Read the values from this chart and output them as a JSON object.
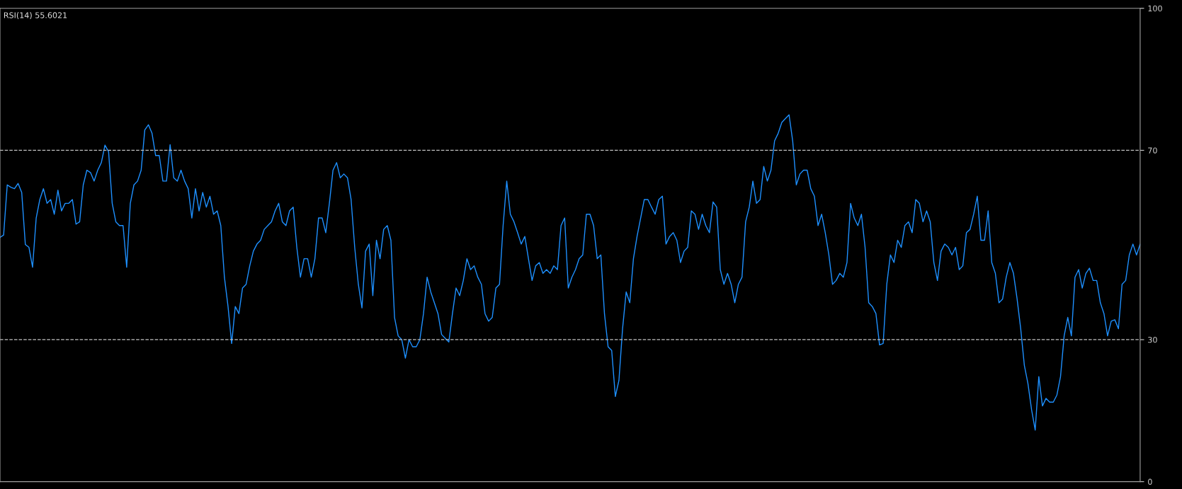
{
  "chart_data": {
    "type": "line",
    "title": "RSI(14) 55.6021",
    "ylim": [
      0,
      100
    ],
    "yticks": [
      0,
      30,
      70,
      100
    ],
    "grid": false,
    "legend": false,
    "marker": "none",
    "line_style": "solid",
    "ref_lines": [
      {
        "axis": "y",
        "value": 70,
        "color": "#c0c0c0",
        "line_style": "dashed"
      },
      {
        "axis": "y",
        "value": 30,
        "color": "#c0c0c0",
        "line_style": "dashed"
      }
    ],
    "series": [
      {
        "color": "#1e90ff",
        "values": [
          51.6,
          52.1,
          62.7,
          62.2,
          61.9,
          63.0,
          61.1,
          50.1,
          49.5,
          45.3,
          55.7,
          59.6,
          61.9,
          58.8,
          59.6,
          56.5,
          61.6,
          57.2,
          58.8,
          58.8,
          59.6,
          54.4,
          54.9,
          62.7,
          65.8,
          65.3,
          63.5,
          65.8,
          67.4,
          71.1,
          69.7,
          58.8,
          54.9,
          54.1,
          54.1,
          45.3,
          58.8,
          62.7,
          63.5,
          65.8,
          74.3,
          75.4,
          73.6,
          68.9,
          68.9,
          63.5,
          63.5,
          71.2,
          64.2,
          63.5,
          65.8,
          63.5,
          61.9,
          55.7,
          61.9,
          57.2,
          61.1,
          58.0,
          60.3,
          56.5,
          57.2,
          54.1,
          43.2,
          37.0,
          29.2,
          37.0,
          35.5,
          40.9,
          41.7,
          45.6,
          48.7,
          50.2,
          51.0,
          53.3,
          54.1,
          54.9,
          57.2,
          58.8,
          54.9,
          54.1,
          57.2,
          58.0,
          49.5,
          43.2,
          47.1,
          47.1,
          43.2,
          47.1,
          55.7,
          55.7,
          52.6,
          58.8,
          65.8,
          67.4,
          64.2,
          65.0,
          64.2,
          59.6,
          49.5,
          41.7,
          36.7,
          48.7,
          50.2,
          39.3,
          51.0,
          47.1,
          53.3,
          54.1,
          51.0,
          34.7,
          30.8,
          30.0,
          26.1,
          30.0,
          28.5,
          28.5,
          30.0,
          35.5,
          43.2,
          40.1,
          37.8,
          35.5,
          31.1,
          30.3,
          29.5,
          35.5,
          40.9,
          39.3,
          42.5,
          47.1,
          44.8,
          45.6,
          43.2,
          41.7,
          35.5,
          33.9,
          34.7,
          40.9,
          41.7,
          54.1,
          63.5,
          56.5,
          54.9,
          52.6,
          50.2,
          51.8,
          47.1,
          42.5,
          45.6,
          46.3,
          44.0,
          44.8,
          44.0,
          45.6,
          44.8,
          54.1,
          55.7,
          40.9,
          43.2,
          44.8,
          47.1,
          47.9,
          56.5,
          56.5,
          54.1,
          47.1,
          47.9,
          35.5,
          28.5,
          27.7,
          18.0,
          21.4,
          32.3,
          40.1,
          37.8,
          47.1,
          51.8,
          55.7,
          59.6,
          59.6,
          58.0,
          56.5,
          59.6,
          60.3,
          50.2,
          51.8,
          52.6,
          51.0,
          46.3,
          48.7,
          49.5,
          57.2,
          56.5,
          53.3,
          56.5,
          54.1,
          52.6,
          59.1,
          58.0,
          44.8,
          41.7,
          44.0,
          41.7,
          37.8,
          41.7,
          43.2,
          54.9,
          58.0,
          63.5,
          58.8,
          59.6,
          66.6,
          63.5,
          65.8,
          72.0,
          73.6,
          75.9,
          76.7,
          77.5,
          72.0,
          62.7,
          65.0,
          65.8,
          65.8,
          61.9,
          60.3,
          54.1,
          56.5,
          52.6,
          47.9,
          41.7,
          42.5,
          44.0,
          43.2,
          46.3,
          58.8,
          55.7,
          54.1,
          56.5,
          49.5,
          37.8,
          37.0,
          35.5,
          28.9,
          29.2,
          41.7,
          47.9,
          46.3,
          51.0,
          49.5,
          54.1,
          54.9,
          52.6,
          59.6,
          58.8,
          54.9,
          57.2,
          54.9,
          46.3,
          42.5,
          48.7,
          50.2,
          49.5,
          47.9,
          49.5,
          44.8,
          45.6,
          52.6,
          53.3,
          56.5,
          60.3,
          51.0,
          51.0,
          57.2,
          46.3,
          44.0,
          37.8,
          38.6,
          43.2,
          46.3,
          44.0,
          38.6,
          32.3,
          24.6,
          20.7,
          15.2,
          10.9,
          22.2,
          16.0,
          17.6,
          16.8,
          16.8,
          18.3,
          22.2,
          30.8,
          34.7,
          30.8,
          43.2,
          44.8,
          40.9,
          44.0,
          45.1,
          42.5,
          42.5,
          37.8,
          35.5,
          30.8,
          33.9,
          34.2,
          32.3,
          41.7,
          42.5,
          47.9,
          50.2,
          47.9,
          50.2
        ]
      }
    ]
  }
}
